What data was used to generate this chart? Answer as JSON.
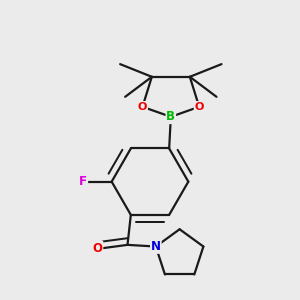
{
  "bg_color": "#ebebeb",
  "bond_color": "#1a1a1a",
  "atom_colors": {
    "B": "#00bb00",
    "O": "#ee0000",
    "F": "#dd00dd",
    "N": "#0000dd",
    "O_carbonyl": "#ee0000"
  },
  "line_width": 1.6,
  "font_size_atom": 8.5,
  "figsize": [
    3.0,
    3.0
  ],
  "dpi": 100
}
